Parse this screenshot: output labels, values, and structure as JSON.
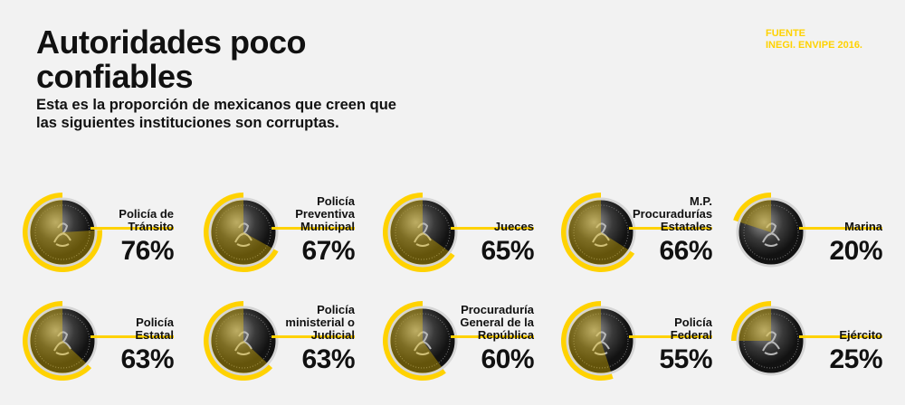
{
  "title": "Autoridades poco confiables",
  "subtitle": "Esta es la proporción de mexicanos que creen que las siguientes instituciones son corruptas.",
  "source": [
    "FUENTE",
    "INEGI. ENVIPE 2016."
  ],
  "colors": {
    "accent": "#ffd200",
    "coin_dark": "#1a1a1a",
    "coin_light": "#cfcfcf",
    "background": "#f2f2f2"
  },
  "chart_data": {
    "type": "bar",
    "categories": [
      "Policía de Tránsito",
      "Policía Preventiva Municipal",
      "Jueces",
      "M.P. Procuradurías Estatales",
      "Marina",
      "Policía Estatal",
      "Policía ministerial o Judicial",
      "Procuraduría General de la República",
      "Policía Federal",
      "Ejército"
    ],
    "values": [
      76,
      67,
      65,
      66,
      20,
      63,
      63,
      60,
      55,
      25
    ],
    "value_labels": [
      "76%",
      "67%",
      "65%",
      "66%",
      "20%",
      "63%",
      "63%",
      "60%",
      "55%",
      "25%"
    ],
    "unit": "%",
    "ylim": [
      0,
      100
    ]
  }
}
